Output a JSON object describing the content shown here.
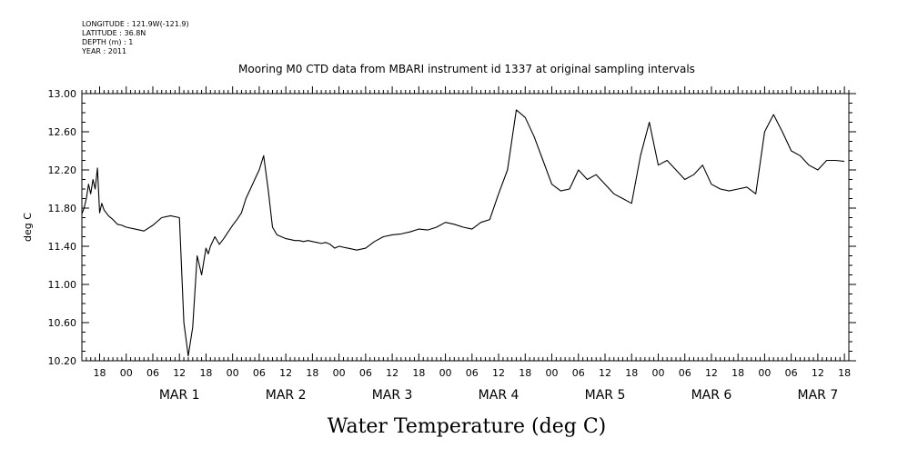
{
  "meta": {
    "lines": [
      "LONGITUDE : 121.9W(-121.9)",
      "LATITUDE : 36.8N",
      "DEPTH (m) : 1",
      "YEAR : 2011"
    ]
  },
  "chart_data": {
    "type": "line",
    "title": "Mooring M0 CTD data from MBARI instrument id 1337 at original sampling intervals",
    "bottom_title": "Water Temperature (deg C)",
    "ylabel": "deg C",
    "xlabel": "",
    "ylim": [
      10.2,
      13.0
    ],
    "yticks": [
      "10.20",
      "10.60",
      "11.00",
      "11.40",
      "11.80",
      "12.20",
      "12.60",
      "13.00"
    ],
    "x_unit": "hours from MAR 1 00:00",
    "xlim": [
      -10,
      163
    ],
    "xtick_hour_labels": [
      "00",
      "06",
      "12",
      "18"
    ],
    "date_labels": [
      "MAR 1",
      "MAR 2",
      "MAR 3",
      "MAR 4",
      "MAR 5",
      "MAR 6",
      "MAR 7"
    ],
    "grid": false,
    "series": [
      {
        "color": "#000000",
        "x": [
          -10,
          -9.5,
          -9,
          -8.5,
          -8,
          -7.5,
          -7,
          -6.5,
          -6,
          -5.5,
          -5,
          -4,
          -3,
          -2,
          -1,
          0,
          2,
          4,
          6,
          8,
          10,
          12,
          13,
          14,
          15,
          16,
          17,
          18,
          18.5,
          19,
          20,
          21,
          22,
          23,
          24,
          25,
          26,
          27,
          28,
          29,
          30,
          31,
          32,
          33,
          34,
          35,
          36,
          37,
          38,
          39,
          40,
          41,
          42,
          43,
          44,
          45,
          46,
          47,
          48,
          50,
          52,
          54,
          56,
          58,
          60,
          62,
          64,
          66,
          68,
          70,
          72,
          74,
          76,
          78,
          80,
          82,
          84,
          86,
          88,
          90,
          92,
          94,
          96,
          98,
          100,
          102,
          104,
          106,
          107,
          108,
          109,
          110,
          112,
          114,
          116,
          118,
          120,
          122,
          124,
          126,
          128,
          130,
          132,
          134,
          136,
          138,
          140,
          142,
          144,
          146,
          148,
          150,
          152,
          154,
          156,
          158,
          160,
          162
        ],
        "values": [
          11.74,
          11.8,
          11.9,
          12.05,
          11.95,
          12.1,
          12.0,
          12.22,
          11.75,
          11.85,
          11.78,
          11.72,
          11.68,
          11.63,
          11.62,
          11.6,
          11.58,
          11.56,
          11.62,
          11.7,
          11.72,
          11.7,
          10.6,
          10.25,
          10.55,
          11.3,
          11.1,
          11.38,
          11.32,
          11.4,
          11.5,
          11.42,
          11.48,
          11.55,
          11.62,
          11.68,
          11.75,
          11.9,
          12.0,
          12.1,
          12.2,
          12.35,
          12.0,
          11.6,
          11.52,
          11.5,
          11.48,
          11.47,
          11.46,
          11.46,
          11.45,
          11.46,
          11.45,
          11.44,
          11.43,
          11.44,
          11.42,
          11.38,
          11.4,
          11.38,
          11.36,
          11.38,
          11.45,
          11.5,
          11.52,
          11.53,
          11.55,
          11.58,
          11.57,
          11.6,
          11.65,
          11.63,
          11.6,
          11.58,
          11.65,
          11.68,
          11.95,
          12.2,
          12.83,
          12.75,
          12.55,
          12.3,
          12.05,
          11.98,
          12.0,
          12.2,
          12.1,
          12.15,
          12.1,
          12.05,
          12.0,
          11.95,
          11.9,
          11.85,
          12.35,
          12.7,
          12.25,
          12.3,
          12.2,
          12.1,
          12.15,
          12.25,
          12.05,
          12.0,
          11.98,
          12.0,
          12.02,
          11.95,
          12.6,
          12.78,
          12.6,
          12.4,
          12.35,
          12.25,
          12.2,
          12.3,
          12.3,
          12.29
        ]
      }
    ]
  }
}
